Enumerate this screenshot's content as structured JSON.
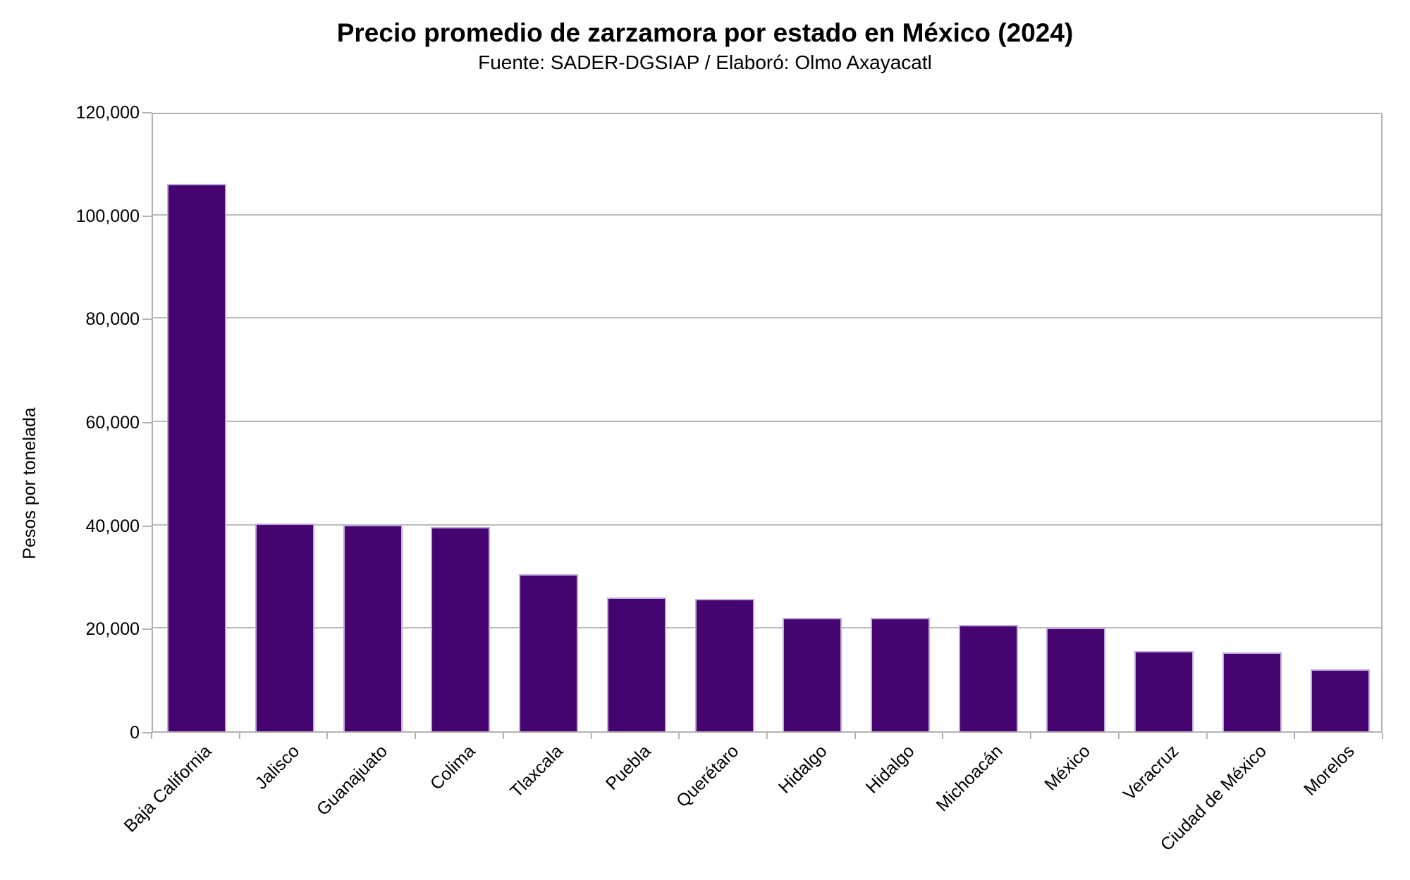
{
  "chart_data": {
    "type": "bar",
    "title": "Precio promedio de zarzamora por estado en México (2024)",
    "subtitle": "Fuente: SADER-DGSIAP / Elaboró: Olmo Axayacatl",
    "ylabel": "Pesos por tonelada",
    "xlabel": "",
    "categories": [
      "Baja California",
      "Jalisco",
      "Guanajuato",
      "Colima",
      "Tlaxcala",
      "Puebla",
      "Querétaro",
      "Hidalgo",
      "Hidalgo",
      "Michoacán",
      "México",
      "Veracruz",
      "Ciudad de México",
      "Morelos"
    ],
    "values": [
      106000,
      40200,
      40000,
      39500,
      30400,
      25900,
      25600,
      22000,
      22000,
      20600,
      20000,
      15500,
      15300,
      12000
    ],
    "ylim": [
      0,
      120000
    ],
    "ytick_interval": 20000,
    "ytick_labels": [
      "0",
      "20,000",
      "40,000",
      "60,000",
      "80,000",
      "100,000",
      "120,000"
    ],
    "grid": true,
    "legend": false,
    "bar_color": "#460470",
    "bar_border_color": "#c1abdc",
    "axis_color": "#b3b3b3"
  }
}
